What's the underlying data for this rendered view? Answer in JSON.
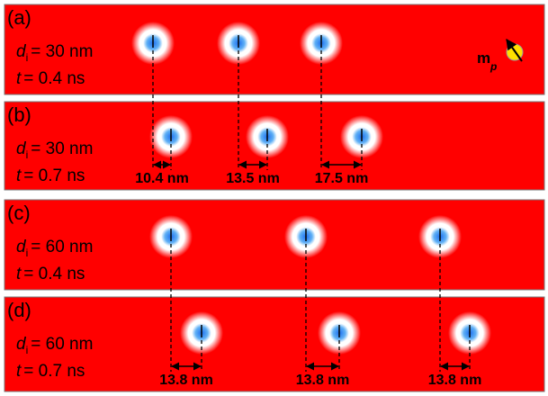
{
  "d_symbol": "d",
  "d_subscript": "i",
  "t_symbol": "t",
  "polarizer": {
    "symbol": "m",
    "subscript": "p"
  },
  "panels": [
    {
      "tag": "(a)",
      "d_value": "= 30 nm",
      "t_value": "= 0.4 ns"
    },
    {
      "tag": "(b)",
      "d_value": "= 30 nm",
      "t_value": "= 0.7 ns",
      "shifts": [
        "10.4 nm",
        "13.5 nm",
        "17.5 nm"
      ]
    },
    {
      "tag": "(c)",
      "d_value": "= 60 nm",
      "t_value": "= 0.4 ns"
    },
    {
      "tag": "(d)",
      "d_value": "= 60 nm",
      "t_value": "= 0.7 ns",
      "shifts": [
        "13.8 nm",
        "13.8 nm",
        "13.8 nm"
      ]
    }
  ]
}
